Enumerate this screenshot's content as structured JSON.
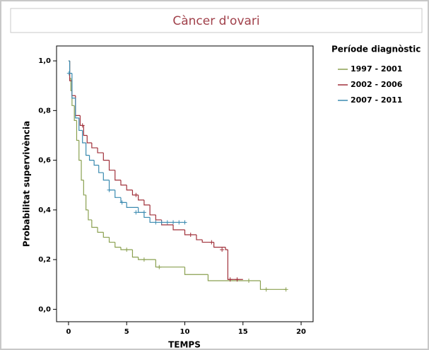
{
  "chart_data": {
    "type": "step",
    "title": "Càncer d'ovari",
    "x_label": "TEMPS",
    "y_label": "Probabilitat supervivència",
    "legend_title": "Període diagnòstic",
    "legend_position": "right",
    "xlim": [
      -1.03,
      21.03
    ],
    "ylim": [
      -0.05,
      1.06
    ],
    "xticks": [
      0,
      5,
      10,
      15,
      20
    ],
    "yticks": [
      {
        "value": 0,
        "label": "0,0"
      },
      {
        "value": 0.2,
        "label": "0,2"
      },
      {
        "value": 0.4,
        "label": "0,4"
      },
      {
        "value": 0.6,
        "label": "0,6"
      },
      {
        "value": 0.8,
        "label": "0,8"
      },
      {
        "value": 1,
        "label": "1,0"
      }
    ],
    "series": [
      {
        "name": "1997 - 2001",
        "color": "#8aa050",
        "x": [
          0,
          0.1,
          0.2,
          0.3,
          0.5,
          0.7,
          0.9,
          1.1,
          1.3,
          1.5,
          1.7,
          2.0,
          2.5,
          3.0,
          3.5,
          4.0,
          4.5,
          5.5,
          6.0,
          7.5,
          10.0,
          12.0,
          16.5,
          18.7
        ],
        "values": [
          1.0,
          0.93,
          0.88,
          0.82,
          0.76,
          0.68,
          0.6,
          0.52,
          0.46,
          0.4,
          0.36,
          0.33,
          0.31,
          0.29,
          0.27,
          0.25,
          0.24,
          0.21,
          0.2,
          0.17,
          0.14,
          0.115,
          0.08,
          0.08
        ],
        "censored_x": [
          5,
          6.5,
          7.8,
          15.5,
          17,
          18.7
        ],
        "censored_y": [
          0.24,
          0.2,
          0.17,
          0.115,
          0.08,
          0.08
        ]
      },
      {
        "name": "2002 - 2006",
        "color": "#a0303a",
        "x": [
          0,
          0.1,
          0.3,
          0.6,
          1.0,
          1.3,
          1.6,
          2.0,
          2.5,
          3.0,
          3.5,
          4.0,
          4.5,
          5.0,
          5.5,
          6.0,
          6.5,
          7.0,
          7.5,
          8.0,
          9.0,
          10.0,
          11.0,
          11.5,
          12.5,
          13.5,
          13.7,
          15.0
        ],
        "values": [
          1.0,
          0.92,
          0.86,
          0.78,
          0.74,
          0.7,
          0.67,
          0.65,
          0.63,
          0.6,
          0.56,
          0.52,
          0.5,
          0.48,
          0.46,
          0.44,
          0.42,
          0.38,
          0.36,
          0.34,
          0.32,
          0.3,
          0.28,
          0.27,
          0.25,
          0.24,
          0.12,
          0.12
        ],
        "censored_x": [
          1.2,
          5.8,
          10.5,
          12.3,
          13.2,
          13.9,
          14.5
        ],
        "censored_y": [
          0.74,
          0.46,
          0.3,
          0.27,
          0.24,
          0.12,
          0.12
        ]
      },
      {
        "name": "2007 - 2011",
        "color": "#3a8ab0",
        "x": [
          0,
          0.1,
          0.3,
          0.6,
          0.9,
          1.2,
          1.5,
          1.8,
          2.2,
          2.6,
          3.0,
          3.5,
          4.0,
          4.5,
          5.0,
          6.0,
          6.5,
          7.0,
          10.0
        ],
        "values": [
          1.0,
          0.95,
          0.85,
          0.77,
          0.72,
          0.67,
          0.62,
          0.6,
          0.58,
          0.55,
          0.52,
          0.48,
          0.45,
          0.43,
          0.41,
          0.39,
          0.37,
          0.35,
          0.35
        ],
        "censored_x": [
          0.05,
          3.5,
          4.6,
          5.8,
          6.5,
          7.5,
          8,
          8.5,
          9,
          9.5,
          10
        ],
        "censored_y": [
          0.95,
          0.48,
          0.43,
          0.39,
          0.39,
          0.35,
          0.35,
          0.35,
          0.35,
          0.35,
          0.35
        ]
      }
    ]
  }
}
